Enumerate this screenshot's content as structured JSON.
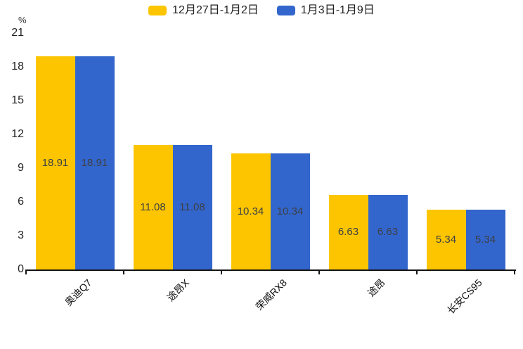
{
  "chart_data": {
    "type": "bar",
    "title": "",
    "unit_label": "%",
    "categories": [
      "奥迪Q7",
      "途昂X",
      "荣威RX8",
      "途昂",
      "长安CS95"
    ],
    "series": [
      {
        "name": "12月27日-1月2日",
        "color": "#FCC500",
        "values": [
          18.91,
          11.08,
          10.34,
          6.63,
          5.34
        ]
      },
      {
        "name": "1月3日-1月9日",
        "color": "#3366CC",
        "values": [
          18.91,
          11.08,
          10.34,
          6.63,
          5.34
        ]
      }
    ],
    "ylim": [
      0,
      21
    ],
    "yticks": [
      0,
      3,
      6,
      9,
      12,
      15,
      18,
      21
    ],
    "grid": false,
    "legend_position": "top",
    "value_label_position": "inside-center",
    "value_label_color": "#3d4045",
    "axis_color": "#141414"
  }
}
